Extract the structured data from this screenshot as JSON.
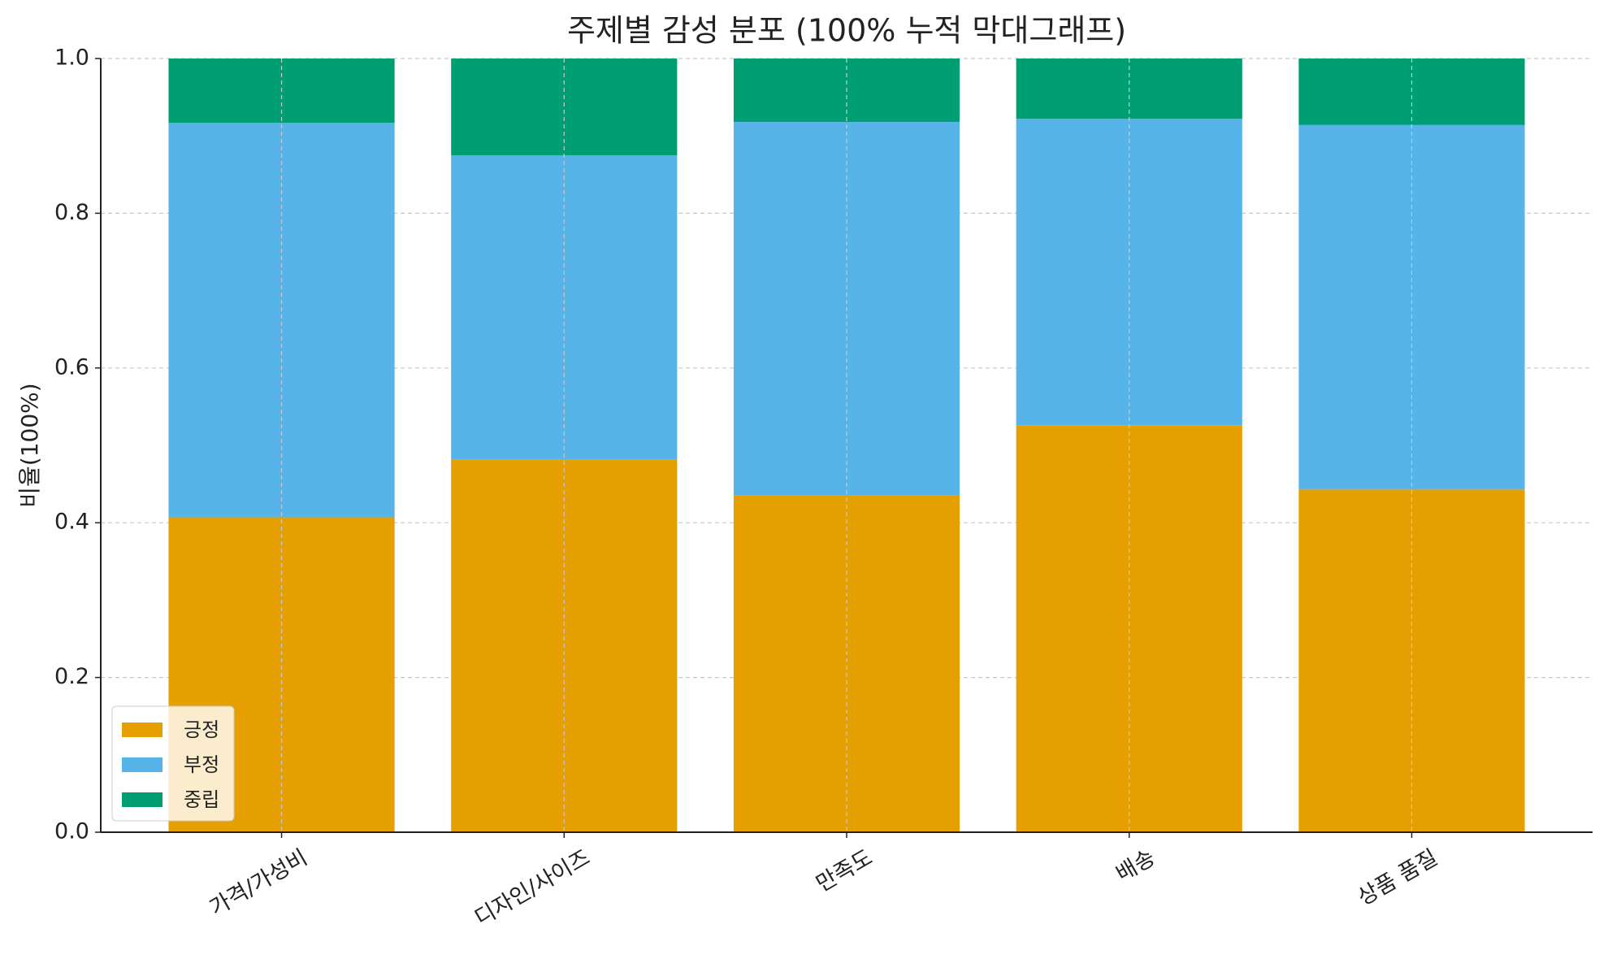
{
  "chart_data": {
    "type": "stacked_bar",
    "title": "주제별 감성 분포 (100% 누적 막대그래프)",
    "ylabel": "비율(100%)",
    "categories": [
      "가격/가성비",
      "디자인/사이즈",
      "만족도",
      "배송",
      "상품 품질"
    ],
    "series": [
      {
        "name": "긍정",
        "color": "#e69f00",
        "values": [
          0.407,
          0.482,
          0.435,
          0.526,
          0.443
        ]
      },
      {
        "name": "부정",
        "color": "#56b4e9",
        "values": [
          0.51,
          0.393,
          0.483,
          0.396,
          0.471
        ]
      },
      {
        "name": "중립",
        "color": "#009e73",
        "values": [
          0.083,
          0.125,
          0.082,
          0.078,
          0.086
        ]
      }
    ],
    "ylim": [
      0,
      1
    ],
    "yticks": [
      {
        "value": 0,
        "label": "0.0"
      },
      0.2,
      0.4,
      0.6,
      0.8,
      {
        "value": 1,
        "label": "1.0"
      }
    ],
    "grid": true,
    "legend": "lower left"
  }
}
